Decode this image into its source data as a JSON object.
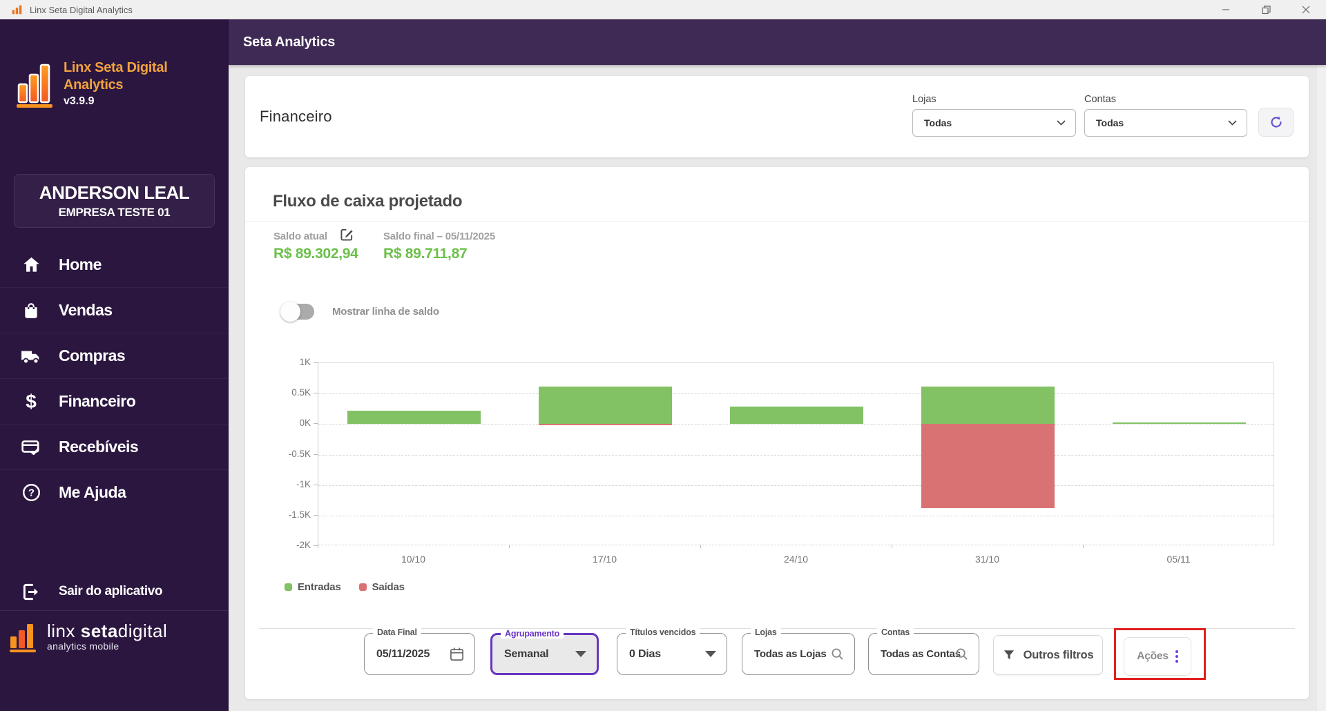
{
  "window": {
    "title": "Linx Seta Digital Analytics"
  },
  "header": {
    "title": "Seta Analytics"
  },
  "sidebar": {
    "logo": {
      "title_line1": "Linx Seta Digital",
      "title_line2": "Analytics",
      "version": "v3.9.9"
    },
    "user": {
      "name": "ANDERSON LEAL",
      "company": "EMPRESA TESTE 01"
    },
    "items": [
      {
        "label": "Home",
        "icon": "home-icon"
      },
      {
        "label": "Vendas",
        "icon": "shopping-bag-icon"
      },
      {
        "label": "Compras",
        "icon": "truck-icon"
      },
      {
        "label": "Financeiro",
        "icon": "dollar-icon"
      },
      {
        "label": "Recebíveis",
        "icon": "card-check-icon"
      },
      {
        "label": "Me Ajuda",
        "icon": "help-circle-icon"
      }
    ],
    "logout_label": "Sair do aplicativo",
    "footer": {
      "brand_linx": "linx ",
      "brand_seta": "seta",
      "brand_digital": "digital",
      "subtitle": "analytics mobile"
    }
  },
  "page": {
    "title": "Financeiro",
    "filters_top": {
      "lojas_label": "Lojas",
      "lojas_value": "Todas",
      "contas_label": "Contas",
      "contas_value": "Todas"
    }
  },
  "card": {
    "title": "Fluxo de caixa projetado",
    "saldo_atual_label": "Saldo atual",
    "saldo_atual_value": "R$ 89.302,94",
    "saldo_final_label": "Saldo final – 05/11/2025",
    "saldo_final_value": "R$ 89.711,87",
    "toggle_label": "Mostrar linha de saldo",
    "toggle_state": "off"
  },
  "chart_data": {
    "type": "bar",
    "categories": [
      "10/10",
      "17/10",
      "24/10",
      "31/10",
      "05/11"
    ],
    "series": [
      {
        "name": "Entradas",
        "color": "#82c164",
        "values": [
          220,
          620,
          290,
          620,
          30
        ]
      },
      {
        "name": "Saídas",
        "color": "#d97373",
        "values": [
          0,
          -15,
          0,
          -1380,
          0
        ]
      }
    ],
    "title": "Fluxo de caixa projetado",
    "xlabel": "",
    "ylabel": "",
    "ylim": [
      -2000,
      1000
    ],
    "ytick_labels": [
      "1K",
      "0.5K",
      "0K",
      "-0.5K",
      "-1K",
      "-1.5K",
      "-2K"
    ],
    "ytick_values": [
      1000,
      500,
      0,
      -500,
      -1000,
      -1500,
      -2000
    ],
    "grid": "horizontal-dashed",
    "legend_position": "bottom-left"
  },
  "bottom_filters": {
    "data_final": {
      "label": "Data Final",
      "value": "05/11/2025"
    },
    "agrupamento": {
      "label": "Agrupamento",
      "value": "Semanal"
    },
    "titulos_vencidos": {
      "label": "Títulos vencidos",
      "value": "0 Dias"
    },
    "lojas": {
      "label": "Lojas",
      "value": "Todas as Lojas"
    },
    "contas": {
      "label": "Contas",
      "value": "Todas as Contas"
    },
    "outros_filtros_label": "Outros filtros",
    "acoes_label": "Ações"
  },
  "colors": {
    "sidebar_bg": "#2b1640",
    "header_bg": "#3e2a55",
    "brand_orange": "#f2a33c",
    "positive_green": "#6cc04a",
    "bar_green": "#82c164",
    "bar_red": "#d97373",
    "accent_purple": "#6636c0",
    "annotation_red": "#e02020"
  }
}
